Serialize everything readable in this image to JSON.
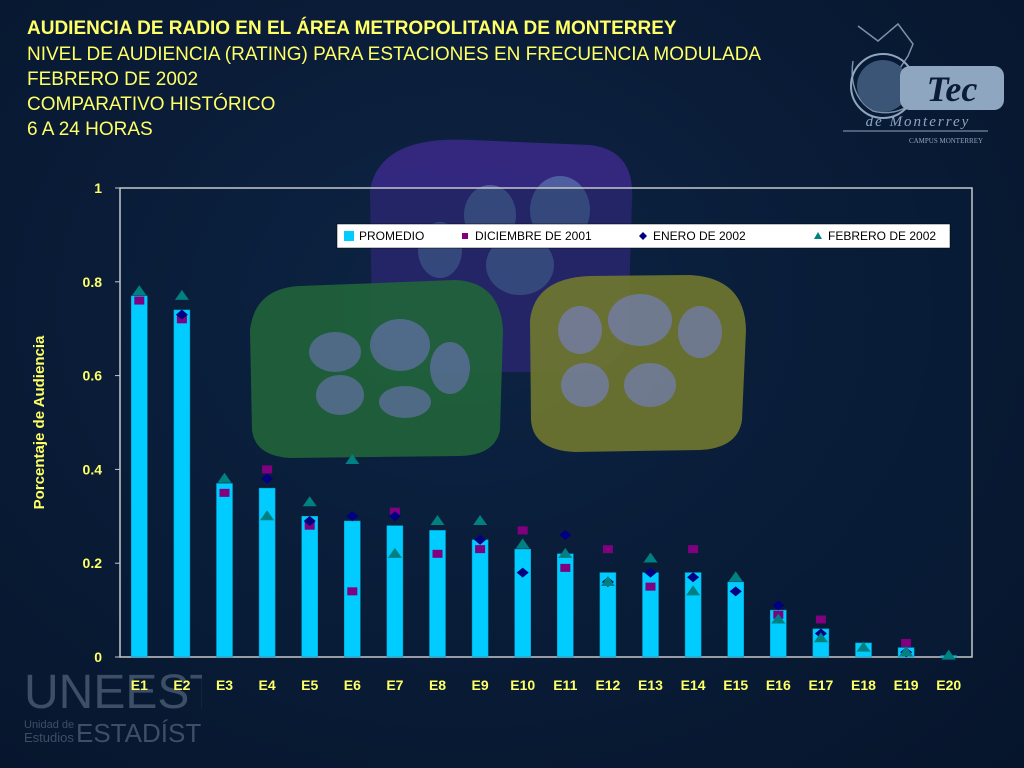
{
  "header": {
    "title": "AUDIENCIA DE RADIO EN EL ÁREA METROPOLITANA DE MONTERREY",
    "subtitle_lines": [
      "NIVEL DE AUDIENCIA (RATING) PARA ESTACIONES EN FRECUENCIA MODULADA",
      "FEBRERO DE 2002",
      "COMPARATIVO HISTÓRICO",
      "6 A 24 HORAS"
    ]
  },
  "logos": {
    "tec_name": "Tec",
    "tec_sub": "de Monterrey",
    "tec_campus": "CAMPUS MONTERREY",
    "unee_big": "UNEEST",
    "unee_small1": "Unidad de",
    "unee_small2": "Estudios",
    "unee_big2": "ESTADÍSTICOS"
  },
  "colors": {
    "promedio": "#00ccff",
    "diciembre": "#800080",
    "enero": "#000080",
    "febrero": "#008080",
    "text": "#ffff66",
    "plot_bg": "#0a1f3d",
    "plot_border": "#c8c8c8"
  },
  "chart_data": {
    "type": "bar",
    "ylabel": "Porcentaje de Audiencia",
    "xlabel": "",
    "ylim": [
      0,
      1
    ],
    "yticks": [
      "0",
      "0.2",
      "0.4",
      "0.6",
      "0.8",
      "1"
    ],
    "legend_position": "top-right",
    "categories": [
      "E1",
      "E2",
      "E3",
      "E4",
      "E5",
      "E6",
      "E7",
      "E8",
      "E9",
      "E10",
      "E11",
      "E12",
      "E13",
      "E14",
      "E15",
      "E16",
      "E17",
      "E18",
      "E19",
      "E20"
    ],
    "series": [
      {
        "name": "PROMEDIO",
        "kind": "bar",
        "values": [
          0.77,
          0.74,
          0.37,
          0.36,
          0.3,
          0.29,
          0.28,
          0.27,
          0.25,
          0.23,
          0.22,
          0.18,
          0.18,
          0.18,
          0.16,
          0.1,
          0.06,
          0.03,
          0.02,
          0.003
        ]
      },
      {
        "name": "DICIEMBRE DE 2001",
        "kind": "square",
        "values": [
          0.76,
          0.72,
          0.35,
          0.4,
          0.28,
          0.14,
          0.31,
          0.22,
          0.23,
          0.27,
          0.19,
          0.23,
          0.15,
          0.23,
          null,
          0.09,
          0.08,
          null,
          0.03,
          null
        ]
      },
      {
        "name": "ENERO DE 2002",
        "kind": "diamond",
        "values": [
          null,
          0.73,
          null,
          0.38,
          0.29,
          0.3,
          0.3,
          null,
          0.25,
          0.18,
          0.26,
          0.16,
          0.18,
          0.17,
          0.14,
          0.11,
          0.05,
          null,
          0.01,
          null
        ]
      },
      {
        "name": "FEBRERO DE 2002",
        "kind": "triangle",
        "values": [
          0.78,
          0.77,
          0.38,
          0.3,
          0.33,
          0.42,
          0.22,
          0.29,
          0.29,
          0.24,
          0.22,
          0.16,
          0.21,
          0.14,
          0.17,
          0.08,
          0.04,
          0.02,
          0.01,
          0.003
        ]
      }
    ]
  }
}
